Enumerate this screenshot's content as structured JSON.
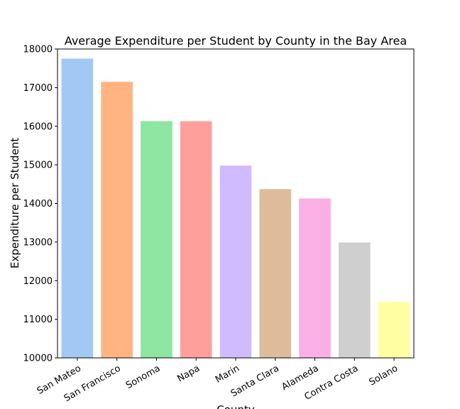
{
  "chart_data": {
    "type": "bar",
    "title": "Average Expenditure per Student by County in the Bay Area",
    "xlabel": "County",
    "ylabel": "Expenditure per Student",
    "ylim": [
      10000,
      18000
    ],
    "yticks": [
      10000,
      11000,
      12000,
      13000,
      14000,
      15000,
      16000,
      17000,
      18000
    ],
    "categories": [
      "San Mateo",
      "San Francisco",
      "Sonoma",
      "Napa",
      "Marin",
      "Santa Clara",
      "Alameda",
      "Contra Costa",
      "Solano"
    ],
    "values": [
      17750,
      17150,
      16130,
      16130,
      14980,
      14370,
      14130,
      12990,
      11450
    ],
    "colors": [
      "#a1c9f4",
      "#ffb482",
      "#8de5a1",
      "#ff9f9b",
      "#d0bbff",
      "#debb9b",
      "#fab0e4",
      "#cfcfcf",
      "#fffea3"
    ],
    "grid": false,
    "legend": "none"
  }
}
